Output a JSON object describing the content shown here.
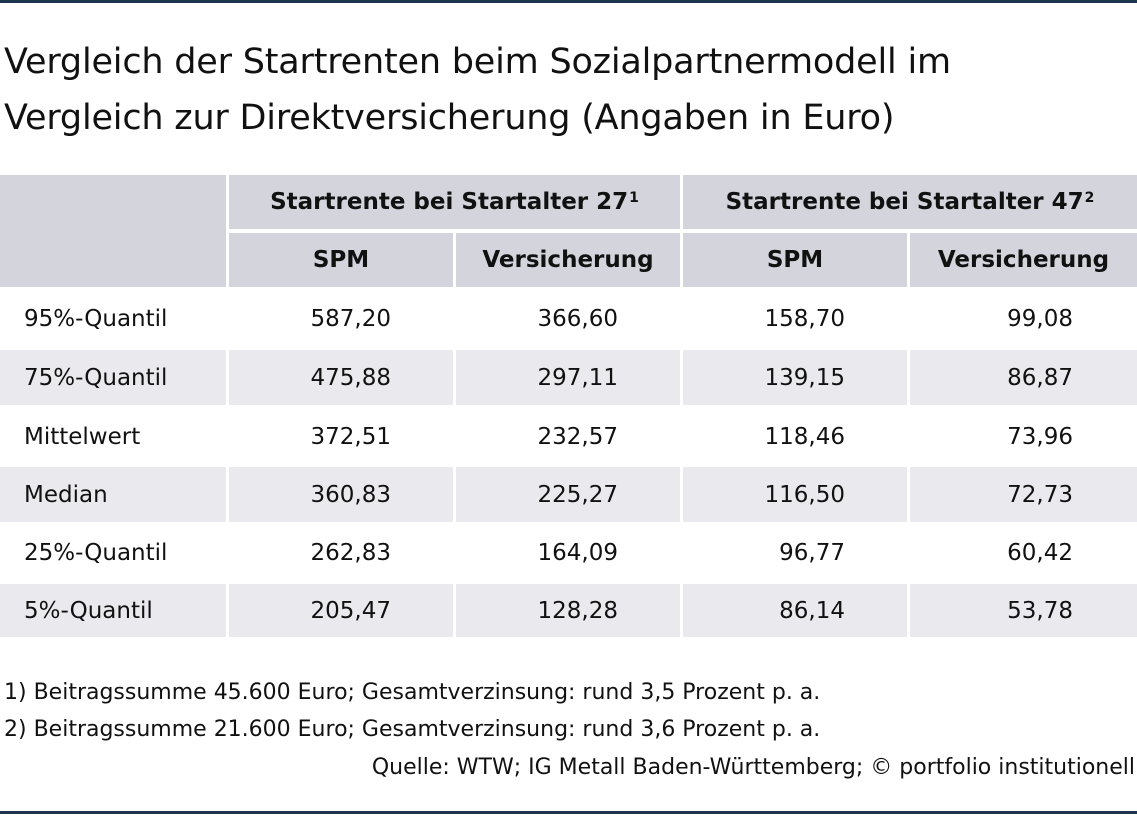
{
  "title": {
    "line1": "Vergleich der Startrenten beim Sozialpartnermodell im",
    "line2": "Vergleich zur Direktversicherung (Angaben in Euro)"
  },
  "table": {
    "group_headers": [
      {
        "label": "Startrente bei Startalter 27",
        "sup": "1"
      },
      {
        "label": "Startrente bei Startalter 47",
        "sup": "2"
      }
    ],
    "sub_headers": [
      "SPM",
      "Versicherung",
      "SPM",
      "Versicherung"
    ],
    "rows": [
      {
        "label": "95%-Quantil",
        "values": [
          "587,20",
          "366,60",
          "158,70",
          "99,08"
        ]
      },
      {
        "label": "75%-Quantil",
        "values": [
          "475,88",
          "297,11",
          "139,15",
          "86,87"
        ]
      },
      {
        "label": "Mittelwert",
        "values": [
          "372,51",
          "232,57",
          "118,46",
          "73,96"
        ]
      },
      {
        "label": "Median",
        "values": [
          "360,83",
          "225,27",
          "116,50",
          "72,73"
        ]
      },
      {
        "label": "25%-Quantil",
        "values": [
          "262,83",
          "164,09",
          "96,77",
          "60,42"
        ]
      },
      {
        "label": "5%-Quantil",
        "values": [
          "205,47",
          "128,28",
          "86,14",
          "53,78"
        ]
      }
    ]
  },
  "footnotes": [
    "1) Beitragssumme 45.600 Euro; Gesamtverzinsung: rund 3,5 Prozent p. a.",
    "2) Beitragssumme 21.600 Euro; Gesamtverzinsung: rund 3,6 Prozent p. a."
  ],
  "source": "Quelle: WTW; IG Metall Baden-Württemberg; © portfolio institutionell",
  "colors": {
    "rule": "#1f3550",
    "header_bg": "#d3d4dc",
    "alt_row_bg": "#e9e9ee"
  }
}
